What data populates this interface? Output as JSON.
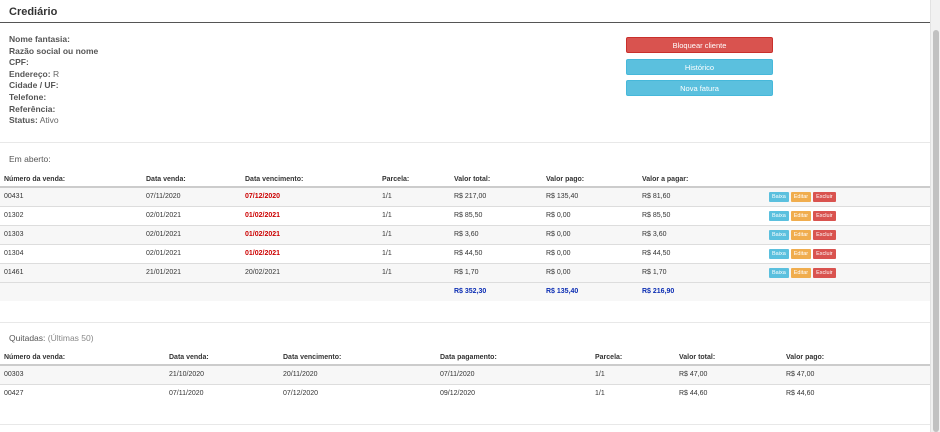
{
  "header": {
    "title": "Crediário"
  },
  "client": {
    "fields": [
      {
        "label": "Nome fantasia:",
        "value": ""
      },
      {
        "label": "Razão social ou nome",
        "value": ""
      },
      {
        "label": "CPF:",
        "value": ""
      },
      {
        "label": "Endereço:",
        "value": "R"
      },
      {
        "label": "Cidade / UF:",
        "value": ""
      },
      {
        "label": "Telefone:",
        "value": ""
      },
      {
        "label": "Referência:",
        "value": ""
      },
      {
        "label": "Status:",
        "value": "Ativo"
      }
    ]
  },
  "actions": {
    "block_label": "Bloquear cliente",
    "history_label": "Histórico",
    "new_invoice_label": "Nova fatura"
  },
  "open": {
    "title": "Em aberto:",
    "columns": [
      "Número da venda:",
      "Data venda:",
      "Data vencimento:",
      "Parcela:",
      "Valor total:",
      "Valor pago:",
      "Valor a pagar:"
    ],
    "rows": [
      {
        "numero": "00431",
        "data_venda": "07/11/2020",
        "vencimento": "07/12/2020",
        "parcela": "1/1",
        "total": "R$ 217,00",
        "pago": "R$ 135,40",
        "a_pagar": "R$ 81,60",
        "overdue": true
      },
      {
        "numero": "01302",
        "data_venda": "02/01/2021",
        "vencimento": "01/02/2021",
        "parcela": "1/1",
        "total": "R$ 85,50",
        "pago": "R$ 0,00",
        "a_pagar": "R$ 85,50",
        "overdue": true
      },
      {
        "numero": "01303",
        "data_venda": "02/01/2021",
        "vencimento": "01/02/2021",
        "parcela": "1/1",
        "total": "R$ 3,60",
        "pago": "R$ 0,00",
        "a_pagar": "R$ 3,60",
        "overdue": true
      },
      {
        "numero": "01304",
        "data_venda": "02/01/2021",
        "vencimento": "01/02/2021",
        "parcela": "1/1",
        "total": "R$ 44,50",
        "pago": "R$ 0,00",
        "a_pagar": "R$ 44,50",
        "overdue": true
      },
      {
        "numero": "01461",
        "data_venda": "21/01/2021",
        "vencimento": "20/02/2021",
        "parcela": "1/1",
        "total": "R$ 1,70",
        "pago": "R$ 0,00",
        "a_pagar": "R$ 1,70",
        "overdue": false
      }
    ],
    "row_actions": {
      "baixa": "Baixa",
      "editar": "Editar",
      "excluir": "Excluir"
    },
    "totals": {
      "total": "R$ 352,30",
      "pago": "R$ 135,40",
      "a_pagar": "R$ 216,90"
    }
  },
  "paid": {
    "title": "Quitadas:",
    "subtitle": "(Últimas 50)",
    "columns": [
      "Número da venda:",
      "Data venda:",
      "Data vencimento:",
      "Data pagamento:",
      "Parcela:",
      "Valor total:",
      "Valor pago:"
    ],
    "rows": [
      {
        "numero": "00303",
        "data_venda": "21/10/2020",
        "vencimento": "20/11/2020",
        "pagamento": "07/11/2020",
        "parcela": "1/1",
        "total": "R$ 47,00",
        "pago": "R$ 47,00"
      },
      {
        "numero": "00427",
        "data_venda": "07/11/2020",
        "vencimento": "07/12/2020",
        "pagamento": "09/12/2020",
        "parcela": "1/1",
        "total": "R$ 44,60",
        "pago": "R$ 44,60"
      }
    ]
  },
  "colors": {
    "danger": "#d9534f",
    "info": "#5bc0de",
    "warning": "#f0ad4e",
    "overdue": "#cc0000",
    "totals": "#0b2db3"
  }
}
